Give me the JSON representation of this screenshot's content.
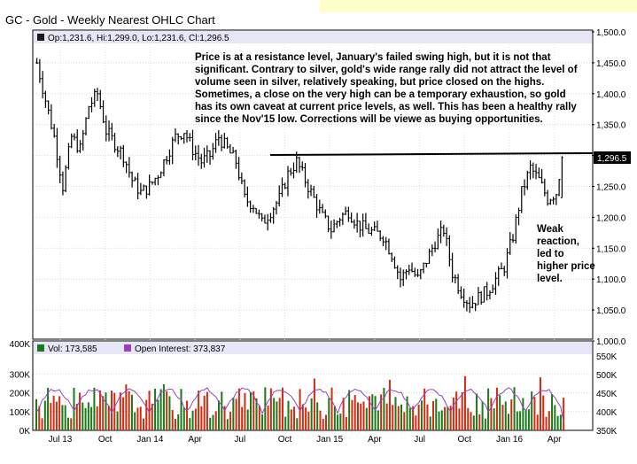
{
  "header": {
    "title": "GC - Gold - Weekly Nearest OHLC Chart",
    "ohlc_legend": "Op:1,231.6, Hi:1,299.0, Lo:1,231.6, Cl:1,296.5",
    "volume_legend": "Vol: 173,585",
    "oi_legend": "Open Interest: 373,837",
    "last_price_tag": "1,296.5"
  },
  "annotations": {
    "commentary": "Price is at a resistance level, January's failed swing high, but it is not that significant.  Contrary to silver, gold's wide range rally did not attract the level of volume seen in silver, relatively speaking, but price closed on the highs.  Sometimes, a close on the very high can be a temporary exhaustion, so gold has its own caveat at current price levels, as well.  This has been a healthy rally since the Nov'15 low.  Corrections will be viewe as buying opportunities.",
    "weak_reaction": "Weak reaction, led to higher price level."
  },
  "colors": {
    "panel_bg": "#ffffff",
    "legend_bg": "#e6e6f7",
    "volume_up": "#1a7a1a",
    "volume_down": "#d42a0f",
    "open_interest": "#9a3fc0",
    "resistance_line": "#000000",
    "highlight_strip": "#ffffc8"
  },
  "chart_data": [
    {
      "type": "ohlc",
      "title": "GC - Gold - Weekly Nearest OHLC Chart",
      "ylim": [
        1000,
        1500
      ],
      "y_ticks": [
        "1,000.0",
        "1,050.0",
        "1,100.0",
        "1,150.0",
        "1,200.0",
        "1,250.0",
        "1,300.0",
        "1,350.0",
        "1,400.0",
        "1,450.0",
        "1,500.0"
      ],
      "x_ticks": [
        "Jul 13",
        "Oct",
        "Jan 14",
        "Apr",
        "Jul",
        "Oct",
        "Jan 15",
        "Apr",
        "Jul",
        "Oct",
        "Jan 16",
        "Apr"
      ],
      "resistance_level": 1305,
      "last": {
        "open": 1231.6,
        "high": 1299.0,
        "low": 1231.6,
        "close": 1296.5
      },
      "close_path": [
        [
          0,
          1450
        ],
        [
          3,
          1390
        ],
        [
          6,
          1330
        ],
        [
          9,
          1250
        ],
        [
          12,
          1330
        ],
        [
          15,
          1310
        ],
        [
          18,
          1380
        ],
        [
          21,
          1400
        ],
        [
          24,
          1340
        ],
        [
          27,
          1320
        ],
        [
          30,
          1300
        ],
        [
          33,
          1260
        ],
        [
          36,
          1240
        ],
        [
          39,
          1250
        ],
        [
          42,
          1270
        ],
        [
          45,
          1300
        ],
        [
          48,
          1330
        ],
        [
          51,
          1340
        ],
        [
          54,
          1310
        ],
        [
          57,
          1290
        ],
        [
          60,
          1300
        ],
        [
          63,
          1330
        ],
        [
          66,
          1310
        ],
        [
          69,
          1290
        ],
        [
          72,
          1230
        ],
        [
          75,
          1220
        ],
        [
          78,
          1190
        ],
        [
          81,
          1210
        ],
        [
          84,
          1230
        ],
        [
          87,
          1270
        ],
        [
          90,
          1290
        ],
        [
          93,
          1260
        ],
        [
          96,
          1230
        ],
        [
          99,
          1200
        ],
        [
          102,
          1180
        ],
        [
          105,
          1200
        ],
        [
          108,
          1210
        ],
        [
          111,
          1190
        ],
        [
          114,
          1180
        ],
        [
          117,
          1175
        ],
        [
          120,
          1170
        ],
        [
          123,
          1140
        ],
        [
          126,
          1100
        ],
        [
          129,
          1120
        ],
        [
          132,
          1100
        ],
        [
          135,
          1130
        ],
        [
          138,
          1160
        ],
        [
          141,
          1180
        ],
        [
          144,
          1110
        ],
        [
          147,
          1080
        ],
        [
          150,
          1060
        ],
        [
          153,
          1070
        ],
        [
          156,
          1080
        ],
        [
          159,
          1100
        ],
        [
          162,
          1120
        ],
        [
          165,
          1170
        ],
        [
          168,
          1240
        ],
        [
          171,
          1280
        ],
        [
          174,
          1260
        ],
        [
          177,
          1230
        ],
        [
          180,
          1240
        ],
        [
          182,
          1296.5
        ]
      ]
    },
    {
      "type": "bar",
      "title": "",
      "ylim": [
        0,
        400000
      ],
      "y_ticks": [
        "0K",
        "100K",
        "200K",
        "300K",
        "400K"
      ],
      "series": [
        {
          "name": "Vol",
          "last": 173585
        },
        {
          "name": "Open Interest",
          "last": 373837,
          "ylim": [
            350000,
            550000
          ],
          "y_ticks": [
            "350K",
            "400K",
            "450K",
            "500K",
            "550K"
          ]
        }
      ]
    }
  ]
}
